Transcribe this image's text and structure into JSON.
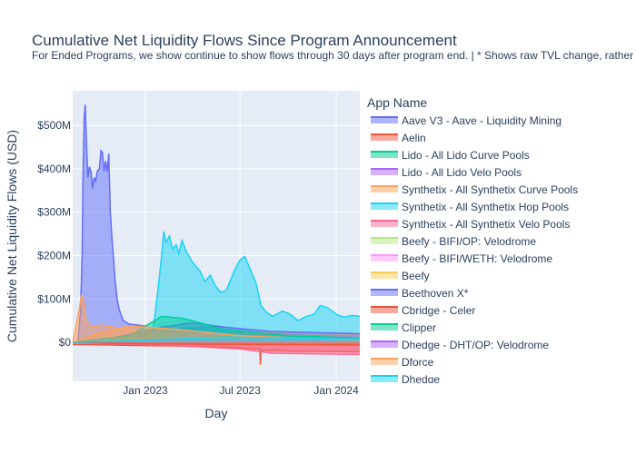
{
  "title": "Cumulative Net Liquidity Flows Since Program Announcement",
  "subtitle": "For Ended Programs, we show continue to show flows through 30 days after program end. | * Shows raw TVL change, rather than",
  "chart_data": {
    "type": "area",
    "xlabel": "Day",
    "ylabel": "Cumulative Net Liquidity Flows (USD)",
    "x_range": [
      "2022-08-15",
      "2024-02-15"
    ],
    "ylim": [
      -90000000,
      580000000
    ],
    "x_ticks": [
      {
        "date": "2023-01-01",
        "label": "Jan 2023"
      },
      {
        "date": "2023-07-01",
        "label": "Jul 2023"
      },
      {
        "date": "2024-01-01",
        "label": "Jan 2024"
      }
    ],
    "y_ticks": [
      {
        "value": 0,
        "label": "$0"
      },
      {
        "value": 100000000,
        "label": "$100M"
      },
      {
        "value": 200000000,
        "label": "$200M"
      },
      {
        "value": 300000000,
        "label": "$300M"
      },
      {
        "value": 400000000,
        "label": "$400M"
      },
      {
        "value": 500000000,
        "label": "$500M"
      }
    ],
    "grid": true,
    "legend_title": "App Name",
    "legend_placement": "right",
    "series": [
      {
        "name": "Aave V3 - Aave - Liquidity Mining",
        "color": "#636efa",
        "points": [
          [
            "2022-08-20",
            0
          ],
          [
            "2022-08-25",
            5000000
          ],
          [
            "2022-08-30",
            70000000
          ],
          [
            "2022-09-02",
            200000000
          ],
          [
            "2022-09-04",
            400000000
          ],
          [
            "2022-09-06",
            520000000
          ],
          [
            "2022-09-08",
            548000000
          ],
          [
            "2022-09-10",
            470000000
          ],
          [
            "2022-09-13",
            380000000
          ],
          [
            "2022-09-16",
            405000000
          ],
          [
            "2022-09-19",
            395000000
          ],
          [
            "2022-09-22",
            355000000
          ],
          [
            "2022-09-25",
            380000000
          ],
          [
            "2022-09-28",
            370000000
          ],
          [
            "2022-10-01",
            395000000
          ],
          [
            "2022-10-05",
            400000000
          ],
          [
            "2022-10-08",
            442000000
          ],
          [
            "2022-10-11",
            438000000
          ],
          [
            "2022-10-14",
            395000000
          ],
          [
            "2022-10-17",
            418000000
          ],
          [
            "2022-10-20",
            393000000
          ],
          [
            "2022-10-23",
            435000000
          ],
          [
            "2022-10-26",
            300000000
          ],
          [
            "2022-10-29",
            240000000
          ],
          [
            "2022-11-01",
            195000000
          ],
          [
            "2022-11-04",
            145000000
          ],
          [
            "2022-11-08",
            100000000
          ],
          [
            "2022-11-11",
            80000000
          ],
          [
            "2022-11-15",
            65000000
          ],
          [
            "2022-11-20",
            50000000
          ],
          [
            "2022-12-01",
            42000000
          ],
          [
            "2022-12-15",
            40000000
          ],
          [
            "2023-01-01",
            37000000
          ]
        ]
      },
      {
        "name": "Aelin",
        "color": "#ef553b",
        "points": [
          [
            "2022-08-15",
            -5000000
          ],
          [
            "2022-12-01",
            -7000000
          ],
          [
            "2023-04-01",
            -9000000
          ],
          [
            "2023-07-01",
            -12000000
          ],
          [
            "2023-08-01",
            -15000000
          ],
          [
            "2023-08-08",
            -15000000
          ],
          [
            "2023-08-09",
            -52000000
          ],
          [
            "2023-08-10",
            -18000000
          ],
          [
            "2023-10-01",
            -20000000
          ],
          [
            "2024-02-15",
            -22000000
          ]
        ]
      },
      {
        "name": "Lido - All Lido Curve Pools",
        "color": "#00cc96",
        "points": [
          [
            "2022-08-15",
            0
          ],
          [
            "2022-10-01",
            8000000
          ],
          [
            "2022-12-01",
            15000000
          ],
          [
            "2023-03-01",
            30000000
          ],
          [
            "2023-05-01",
            35000000
          ],
          [
            "2023-07-01",
            25000000
          ],
          [
            "2023-10-01",
            18000000
          ],
          [
            "2024-02-15",
            12000000
          ]
        ]
      },
      {
        "name": "Lido - All Lido Velo Pools",
        "color": "#ab63fa",
        "points": [
          [
            "2022-08-15",
            0
          ],
          [
            "2022-11-01",
            5000000
          ],
          [
            "2023-02-01",
            10000000
          ],
          [
            "2023-05-01",
            8000000
          ],
          [
            "2023-09-01",
            5000000
          ],
          [
            "2024-02-15",
            3000000
          ]
        ]
      },
      {
        "name": "Synthetix - All Synthetix Curve Pools",
        "color": "#ffa15a",
        "points": [
          [
            "2022-08-15",
            0
          ],
          [
            "2022-08-22",
            40000000
          ],
          [
            "2022-08-28",
            80000000
          ],
          [
            "2022-09-01",
            110000000
          ],
          [
            "2022-09-05",
            95000000
          ],
          [
            "2022-09-10",
            50000000
          ],
          [
            "2022-09-20",
            35000000
          ],
          [
            "2022-10-10",
            40000000
          ],
          [
            "2022-11-01",
            35000000
          ],
          [
            "2022-12-01",
            30000000
          ],
          [
            "2023-01-01",
            25000000
          ],
          [
            "2023-04-01",
            20000000
          ],
          [
            "2023-08-01",
            12000000
          ],
          [
            "2024-02-15",
            8000000
          ]
        ]
      },
      {
        "name": "Synthetix - All Synthetix Hop Pools",
        "color": "#19d3f3",
        "points": [
          [
            "2023-01-15",
            20000000
          ],
          [
            "2023-01-25",
            120000000
          ],
          [
            "2023-02-01",
            200000000
          ],
          [
            "2023-02-05",
            255000000
          ],
          [
            "2023-02-10",
            230000000
          ],
          [
            "2023-02-16",
            245000000
          ],
          [
            "2023-02-22",
            215000000
          ],
          [
            "2023-03-01",
            225000000
          ],
          [
            "2023-03-06",
            205000000
          ],
          [
            "2023-03-12",
            235000000
          ],
          [
            "2023-03-20",
            210000000
          ],
          [
            "2023-04-01",
            185000000
          ],
          [
            "2023-04-15",
            165000000
          ],
          [
            "2023-04-25",
            140000000
          ],
          [
            "2023-05-05",
            155000000
          ],
          [
            "2023-05-15",
            130000000
          ],
          [
            "2023-05-25",
            115000000
          ],
          [
            "2023-06-05",
            120000000
          ],
          [
            "2023-06-20",
            165000000
          ],
          [
            "2023-07-01",
            190000000
          ],
          [
            "2023-07-10",
            198000000
          ],
          [
            "2023-07-20",
            170000000
          ],
          [
            "2023-08-01",
            135000000
          ],
          [
            "2023-08-10",
            85000000
          ],
          [
            "2023-08-20",
            70000000
          ],
          [
            "2023-09-01",
            60000000
          ],
          [
            "2023-09-20",
            72000000
          ],
          [
            "2023-10-05",
            65000000
          ],
          [
            "2023-10-20",
            50000000
          ],
          [
            "2023-11-05",
            60000000
          ],
          [
            "2023-11-20",
            65000000
          ],
          [
            "2023-12-01",
            85000000
          ],
          [
            "2023-12-15",
            80000000
          ],
          [
            "2024-01-01",
            65000000
          ],
          [
            "2024-01-15",
            58000000
          ],
          [
            "2024-02-01",
            62000000
          ],
          [
            "2024-02-15",
            60000000
          ]
        ]
      },
      {
        "name": "Synthetix - All Synthetix Velo Pools",
        "color": "#ff6692",
        "points": [
          [
            "2022-08-15",
            0
          ],
          [
            "2022-11-01",
            -3000000
          ],
          [
            "2023-03-01",
            -8000000
          ],
          [
            "2023-07-01",
            -15000000
          ],
          [
            "2023-09-01",
            -25000000
          ],
          [
            "2024-02-15",
            -28000000
          ]
        ]
      },
      {
        "name": "Beefy - BIFI/OP: Velodrome",
        "color": "#b6e880",
        "points": [
          [
            "2022-08-15",
            0
          ],
          [
            "2022-12-01",
            5000000
          ],
          [
            "2023-04-01",
            10000000
          ],
          [
            "2023-09-01",
            12000000
          ],
          [
            "2024-02-15",
            10000000
          ]
        ]
      },
      {
        "name": "Beefy - BIFI/WETH: Velodrome",
        "color": "#ff97ff",
        "points": [
          [
            "2023-01-01",
            0
          ],
          [
            "2023-03-01",
            10000000
          ],
          [
            "2023-05-01",
            22000000
          ],
          [
            "2023-07-01",
            18000000
          ],
          [
            "2024-02-15",
            12000000
          ]
        ]
      },
      {
        "name": "Beefy",
        "color": "#fecb52",
        "points": [
          [
            "2022-08-15",
            0
          ],
          [
            "2022-12-01",
            8000000
          ],
          [
            "2023-05-01",
            12000000
          ],
          [
            "2023-08-01",
            25000000
          ],
          [
            "2023-11-01",
            20000000
          ],
          [
            "2024-02-15",
            18000000
          ]
        ]
      },
      {
        "name": "Beethoven X*",
        "color": "#636efa",
        "points": [
          [
            "2022-08-15",
            0
          ],
          [
            "2022-11-01",
            10000000
          ],
          [
            "2023-02-01",
            35000000
          ],
          [
            "2023-04-01",
            45000000
          ],
          [
            "2023-06-01",
            35000000
          ],
          [
            "2023-09-01",
            25000000
          ],
          [
            "2024-02-15",
            20000000
          ]
        ]
      },
      {
        "name": "Cbridge - Celer",
        "color": "#ef553b",
        "points": [
          [
            "2022-08-15",
            0
          ],
          [
            "2022-12-01",
            -3000000
          ],
          [
            "2023-06-01",
            -5000000
          ],
          [
            "2024-02-15",
            -6000000
          ]
        ]
      },
      {
        "name": "Clipper",
        "color": "#00cc96",
        "points": [
          [
            "2022-08-15",
            0
          ],
          [
            "2022-12-01",
            15000000
          ],
          [
            "2023-02-01",
            60000000
          ],
          [
            "2023-03-15",
            55000000
          ],
          [
            "2023-06-01",
            30000000
          ],
          [
            "2023-10-01",
            15000000
          ],
          [
            "2024-02-15",
            10000000
          ]
        ]
      },
      {
        "name": "Dhedge - DHT/OP: Velodrome",
        "color": "#ab63fa",
        "points": [
          [
            "2022-08-15",
            0
          ],
          [
            "2023-01-01",
            3000000
          ],
          [
            "2023-06-01",
            5000000
          ],
          [
            "2024-02-15",
            4000000
          ]
        ]
      },
      {
        "name": "Dforce",
        "color": "#ffa15a",
        "points": [
          [
            "2022-08-15",
            0
          ],
          [
            "2022-10-01",
            20000000
          ],
          [
            "2022-12-01",
            38000000
          ],
          [
            "2023-03-01",
            30000000
          ],
          [
            "2023-07-01",
            15000000
          ],
          [
            "2024-02-15",
            5000000
          ]
        ]
      },
      {
        "name": "Dhedge",
        "color": "#19d3f3",
        "points": [
          [
            "2022-08-15",
            0
          ],
          [
            "2023-01-01",
            5000000
          ],
          [
            "2023-06-01",
            12000000
          ],
          [
            "2024-02-15",
            8000000
          ]
        ]
      }
    ]
  }
}
